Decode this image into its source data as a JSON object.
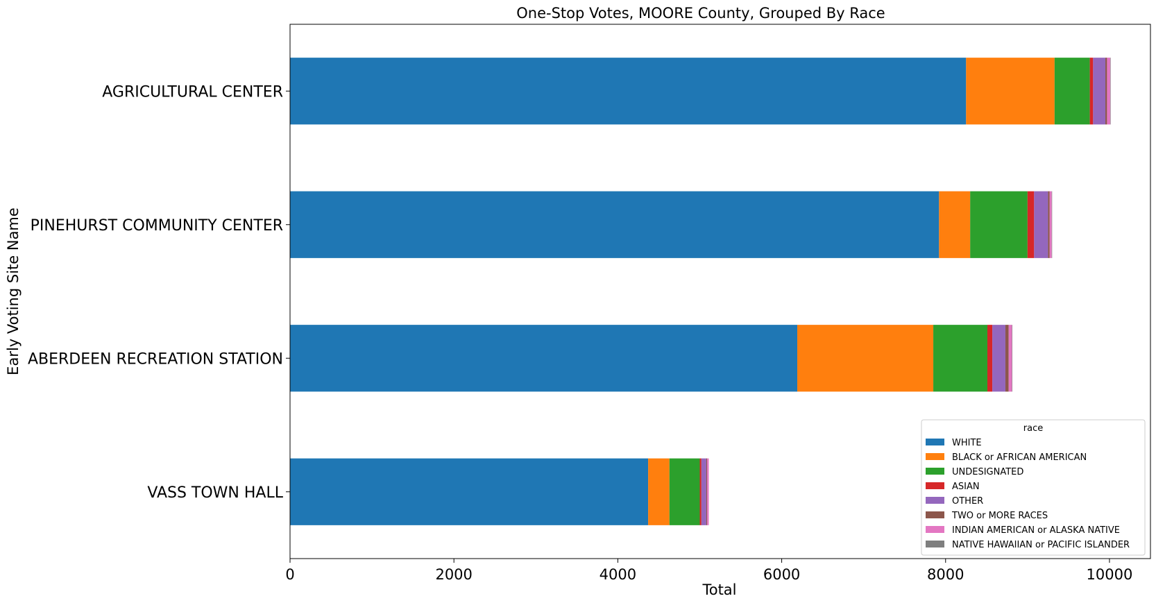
{
  "chart_data": {
    "type": "bar",
    "orientation": "horizontal",
    "stacked": true,
    "title": "One-Stop Votes, MOORE County, Grouped By Race",
    "xlabel": "Total",
    "ylabel": "Early Voting Site Name",
    "xlim": [
      0,
      10500
    ],
    "xticks": [
      0,
      2000,
      4000,
      6000,
      8000,
      10000
    ],
    "grid": false,
    "legend": {
      "title": "race",
      "placement": "lower-right"
    },
    "categories": [
      "AGRICULTURAL CENTER",
      "PINEHURST COMMUNITY CENTER",
      "ABERDEEN RECREATION STATION",
      "VASS TOWN HALL"
    ],
    "series": [
      {
        "name": "WHITE",
        "color": "#1f77b4",
        "values": [
          8250,
          7920,
          6190,
          4370
        ]
      },
      {
        "name": "BLACK or AFRICAN AMERICAN",
        "color": "#ff7f0e",
        "values": [
          1080,
          380,
          1660,
          260
        ]
      },
      {
        "name": "UNDESIGNATED",
        "color": "#2ca02c",
        "values": [
          430,
          700,
          660,
          370
        ]
      },
      {
        "name": "ASIAN",
        "color": "#d62728",
        "values": [
          40,
          80,
          60,
          20
        ]
      },
      {
        "name": "OTHER",
        "color": "#9467bd",
        "values": [
          150,
          170,
          160,
          60
        ]
      },
      {
        "name": "TWO or MORE RACES",
        "color": "#8c564b",
        "values": [
          20,
          20,
          40,
          10
        ]
      },
      {
        "name": "INDIAN AMERICAN or ALASKA NATIVE",
        "color": "#e377c2",
        "values": [
          40,
          25,
          40,
          20
        ]
      },
      {
        "name": "NATIVE HAWAIIAN or PACIFIC ISLANDER",
        "color": "#7f7f7f",
        "values": [
          5,
          5,
          5,
          0
        ]
      }
    ]
  }
}
